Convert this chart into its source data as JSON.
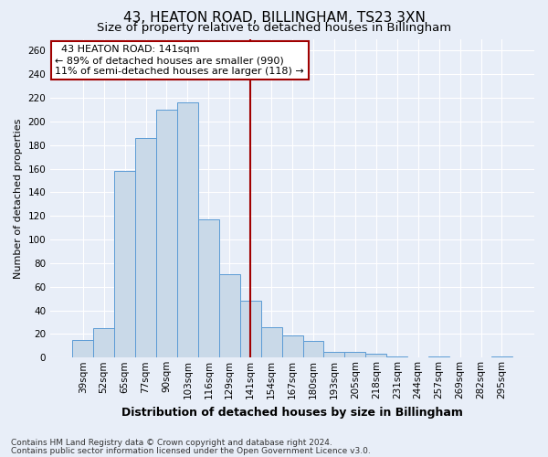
{
  "title": "43, HEATON ROAD, BILLINGHAM, TS23 3XN",
  "subtitle": "Size of property relative to detached houses in Billingham",
  "xlabel": "Distribution of detached houses by size in Billingham",
  "ylabel": "Number of detached properties",
  "categories": [
    "39sqm",
    "52sqm",
    "65sqm",
    "77sqm",
    "90sqm",
    "103sqm",
    "116sqm",
    "129sqm",
    "141sqm",
    "154sqm",
    "167sqm",
    "180sqm",
    "193sqm",
    "205sqm",
    "218sqm",
    "231sqm",
    "244sqm",
    "257sqm",
    "269sqm",
    "282sqm",
    "295sqm"
  ],
  "values": [
    15,
    25,
    158,
    186,
    210,
    216,
    117,
    71,
    48,
    26,
    19,
    14,
    5,
    5,
    3,
    1,
    0,
    1,
    0,
    0,
    1
  ],
  "bar_color": "#c9d9e8",
  "bar_edge_color": "#5b9bd5",
  "vline_x_idx": 8,
  "vline_color": "#a00000",
  "annotation_line1": "  43 HEATON ROAD: 141sqm",
  "annotation_line2": "← 89% of detached houses are smaller (990)",
  "annotation_line3": "11% of semi-detached houses are larger (118) →",
  "annotation_box_color": "#ffffff",
  "annotation_box_edge": "#a00000",
  "ylim": [
    0,
    270
  ],
  "yticks": [
    0,
    20,
    40,
    60,
    80,
    100,
    120,
    140,
    160,
    180,
    200,
    220,
    240,
    260
  ],
  "background_color": "#e8eef8",
  "grid_color": "#ffffff",
  "footer_line1": "Contains HM Land Registry data © Crown copyright and database right 2024.",
  "footer_line2": "Contains public sector information licensed under the Open Government Licence v3.0.",
  "title_fontsize": 11,
  "subtitle_fontsize": 9.5,
  "xlabel_fontsize": 9,
  "ylabel_fontsize": 8,
  "tick_fontsize": 7.5,
  "footer_fontsize": 6.5,
  "ann_fontsize": 8
}
